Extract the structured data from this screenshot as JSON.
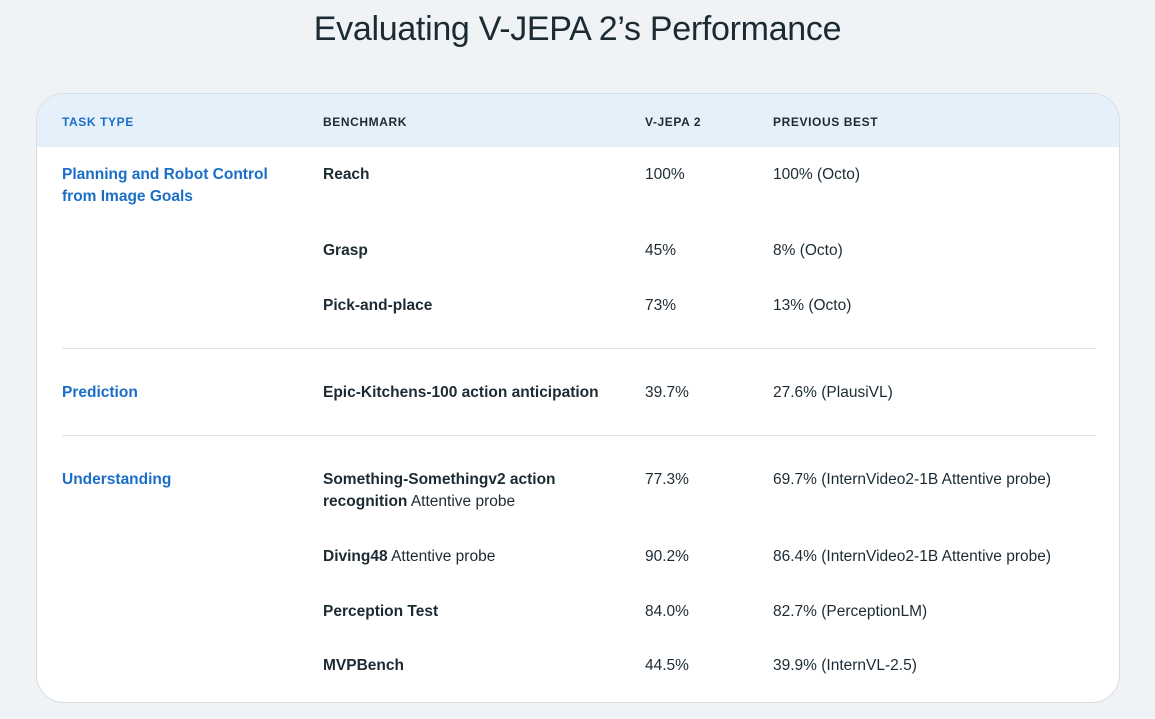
{
  "title": "Evaluating V-JEPA 2’s Performance",
  "header": {
    "task_type": "TASK TYPE",
    "benchmark": "BENCHMARK",
    "vjepa2": "V-JEPA 2",
    "previous_best": "PREVIOUS BEST"
  },
  "groups": [
    {
      "task": "Planning and Robot Control from Image Goals",
      "rows": [
        {
          "benchmark": "Reach",
          "benchmark_note": "",
          "vjepa2": "100%",
          "previous_best": "100% (Octo)"
        },
        {
          "benchmark": "Grasp",
          "benchmark_note": "",
          "vjepa2": "45%",
          "previous_best": "8% (Octo)"
        },
        {
          "benchmark": "Pick-and-place",
          "benchmark_note": "",
          "vjepa2": "73%",
          "previous_best": "13% (Octo)"
        }
      ]
    },
    {
      "task": "Prediction",
      "rows": [
        {
          "benchmark": "Epic-Kitchens-100 action anticipation",
          "benchmark_note": "",
          "vjepa2": "39.7%",
          "previous_best": "27.6% (PlausiVL)"
        }
      ]
    },
    {
      "task": "Understanding",
      "rows": [
        {
          "benchmark": "Something-Somethingv2 action recognition",
          "benchmark_note": "Attentive probe",
          "vjepa2": "77.3%",
          "previous_best": "69.7% (InternVideo2-1B Attentive probe)"
        },
        {
          "benchmark": "Diving48",
          "benchmark_note": "Attentive probe",
          "vjepa2": "90.2%",
          "previous_best": "86.4% (InternVideo2-1B Attentive probe)"
        },
        {
          "benchmark": "Perception Test",
          "benchmark_note": "",
          "vjepa2": "84.0%",
          "previous_best": "82.7% (PerceptionLM)"
        },
        {
          "benchmark": "MVPBench",
          "benchmark_note": "",
          "vjepa2": "44.5%",
          "previous_best": "39.9% (InternVL-2.5)"
        }
      ]
    }
  ]
}
